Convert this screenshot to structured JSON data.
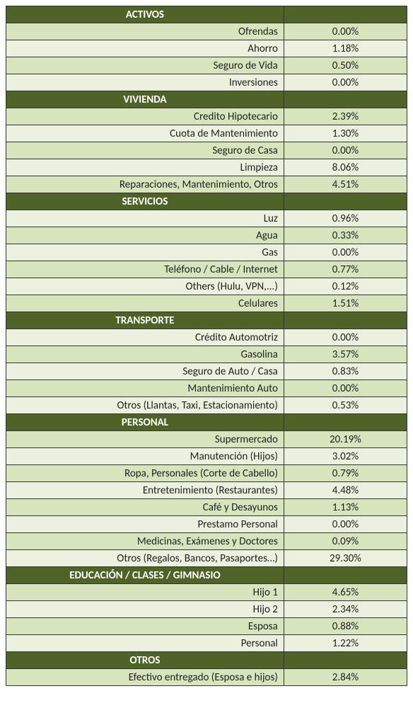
{
  "colors": {
    "header_bg": "#4f6228",
    "header_fg": "#ffffff",
    "row_odd_bg": "#d7e4bd",
    "row_even_bg": "#ebf1de",
    "border": "#333333"
  },
  "sections": [
    {
      "title": "ACTIVOS",
      "rows": [
        {
          "label": "Ofrendas",
          "value": "0.00%"
        },
        {
          "label": "Ahorro",
          "value": "1.18%"
        },
        {
          "label": "Seguro de Vida",
          "value": "0.50%"
        },
        {
          "label": "Inversiones",
          "value": "0.00%"
        }
      ]
    },
    {
      "title": "VIVIENDA",
      "rows": [
        {
          "label": "Credito Hipotecario",
          "value": "2.39%"
        },
        {
          "label": "Cuota de Mantenimiento",
          "value": "1.30%"
        },
        {
          "label": "Seguro de Casa",
          "value": "0.00%"
        },
        {
          "label": "Limpieza",
          "value": "8.06%"
        },
        {
          "label": "Reparaciones, Mantenimiento, Otros",
          "value": "4.51%"
        }
      ]
    },
    {
      "title": "SERVICIOS",
      "rows": [
        {
          "label": "Luz",
          "value": "0.96%"
        },
        {
          "label": "Agua",
          "value": "0.33%"
        },
        {
          "label": "Gas",
          "value": "0.00%"
        },
        {
          "label": "Teléfono / Cable / Internet",
          "value": "0.77%"
        },
        {
          "label": "Others (Hulu, VPN,...)",
          "value": "0.12%"
        },
        {
          "label": "Celulares",
          "value": "1.51%"
        }
      ]
    },
    {
      "title": "TRANSPORTE",
      "rows": [
        {
          "label": "Crédito Automotriz",
          "value": "0.00%"
        },
        {
          "label": "Gasolina",
          "value": "3.57%"
        },
        {
          "label": "Seguro de Auto / Casa",
          "value": "0.83%"
        },
        {
          "label": "Mantenimiento Auto",
          "value": "0.00%"
        },
        {
          "label": "Otros (Llantas, Taxi, Estacionamiento)",
          "value": "0.53%"
        }
      ]
    },
    {
      "title": "PERSONAL",
      "rows": [
        {
          "label": "Supermercado",
          "value": "20.19%"
        },
        {
          "label": "Manutención (Hijos)",
          "value": "3.02%"
        },
        {
          "label": "Ropa, Personales (Corte de Cabello)",
          "value": "0.79%"
        },
        {
          "label": "Entretenimiento (Restaurantes)",
          "value": "4.48%"
        },
        {
          "label": "Café y Desayunos",
          "value": "1.13%"
        },
        {
          "label": "Prestamo Personal",
          "value": "0.00%"
        },
        {
          "label": "Medicinas, Exámenes y Doctores",
          "value": "0.09%"
        },
        {
          "label": "Otros (Regalos, Bancos, Pasaportes…)",
          "value": "29.30%"
        }
      ]
    },
    {
      "title": "EDUCACIÓN / CLASES / GIMNASIO",
      "rows": [
        {
          "label": "Hijo 1",
          "value": "4.65%"
        },
        {
          "label": "Hijo 2",
          "value": "2.34%"
        },
        {
          "label": "Esposa",
          "value": "0.88%"
        },
        {
          "label": "Personal",
          "value": "1.22%"
        }
      ]
    },
    {
      "title": "OTROS",
      "rows": [
        {
          "label": "Efectivo entregado (Esposa e hijos)",
          "value": "2.84%"
        }
      ]
    }
  ]
}
